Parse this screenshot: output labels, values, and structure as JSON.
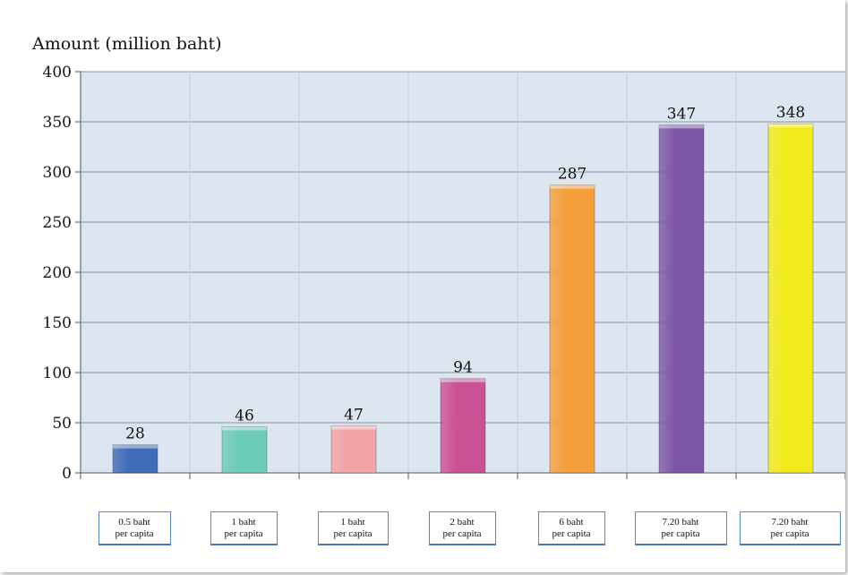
{
  "chart_data": {
    "type": "bar",
    "ylabel": "Amount (million baht)",
    "xlabel": "",
    "ylim": [
      0,
      400
    ],
    "yticks": [
      0,
      50,
      100,
      150,
      200,
      250,
      300,
      350,
      400
    ],
    "grid": true,
    "categories": [
      [
        "0.5 baht",
        "per capita"
      ],
      [
        "1 baht",
        "per capita"
      ],
      [
        "1 baht",
        "per capita"
      ],
      [
        "2 baht",
        "per capita"
      ],
      [
        "6 baht",
        "per capita"
      ],
      [
        "7.20 baht",
        "per capita"
      ],
      [
        "7.20 baht",
        "per capita"
      ]
    ],
    "values": [
      28,
      46,
      47,
      94,
      287,
      347,
      348
    ],
    "colors": [
      "#3f6db8",
      "#6ccdb8",
      "#f4a3a6",
      "#cc5096",
      "#f5a03c",
      "#7f55a6",
      "#f3ea1b"
    ],
    "plot_background": "#dce6f1",
    "grid_color": "#8a94a0"
  }
}
